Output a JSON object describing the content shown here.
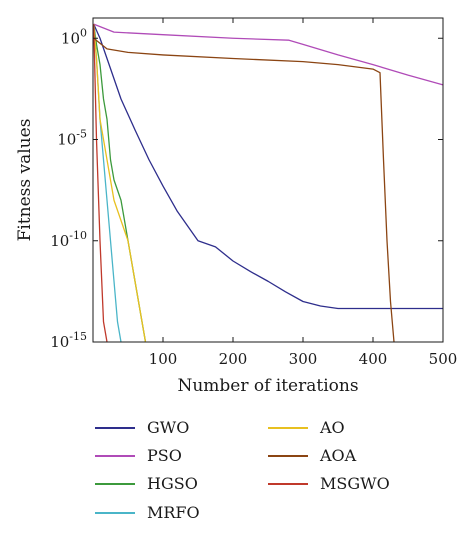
{
  "chart_data": {
    "type": "line",
    "xlabel": "Number of iterations",
    "ylabel": "Fitness values",
    "xlim": [
      0,
      500
    ],
    "ylim": [
      1e-15,
      10
    ],
    "yscale": "log",
    "grid": false,
    "legend_placement": "bottom",
    "x_ticks": [
      {
        "value": 100,
        "label": "100"
      },
      {
        "value": 200,
        "label": "200"
      },
      {
        "value": 300,
        "label": "300"
      },
      {
        "value": 400,
        "label": "400"
      },
      {
        "value": 500,
        "label": "500"
      }
    ],
    "y_ticks": [
      {
        "value": 1,
        "base": "10",
        "exp": "0"
      },
      {
        "value": 1e-05,
        "base": "10",
        "exp": "-5"
      },
      {
        "value": 1e-10,
        "base": "10",
        "exp": "-10"
      },
      {
        "value": 1e-15,
        "base": "10",
        "exp": "-15"
      }
    ],
    "series": [
      {
        "name": "GWO",
        "color": "#2e2e8c",
        "points": [
          [
            1,
            5
          ],
          [
            10,
            1
          ],
          [
            20,
            0.1
          ],
          [
            40,
            0.001
          ],
          [
            60,
            3e-05
          ],
          [
            80,
            1e-06
          ],
          [
            100,
            5e-08
          ],
          [
            120,
            3e-09
          ],
          [
            150,
            1e-10
          ],
          [
            175,
            5e-11
          ],
          [
            200,
            1e-11
          ],
          [
            225,
            3e-12
          ],
          [
            250,
            1e-12
          ],
          [
            275,
            3e-13
          ],
          [
            300,
            1e-13
          ],
          [
            325,
            6e-14
          ],
          [
            350,
            4.5e-14
          ],
          [
            400,
            4.5e-14
          ],
          [
            500,
            4.5e-14
          ]
        ]
      },
      {
        "name": "PSO",
        "color": "#b04bb8",
        "points": [
          [
            1,
            5
          ],
          [
            30,
            2
          ],
          [
            100,
            1.5
          ],
          [
            200,
            1
          ],
          [
            280,
            0.8
          ],
          [
            300,
            0.5
          ],
          [
            350,
            0.15
          ],
          [
            400,
            0.05
          ],
          [
            450,
            0.015
          ],
          [
            500,
            0.005
          ]
        ]
      },
      {
        "name": "HGSO",
        "color": "#3c9a3c",
        "points": [
          [
            1,
            5
          ],
          [
            5,
            0.5
          ],
          [
            10,
            0.05
          ],
          [
            15,
            0.001
          ],
          [
            20,
            0.0001
          ],
          [
            25,
            1e-06
          ],
          [
            30,
            1e-07
          ],
          [
            40,
            1e-08
          ],
          [
            50,
            1e-10
          ],
          [
            60,
            1e-12
          ],
          [
            70,
            1e-14
          ],
          [
            75,
            1e-15
          ]
        ]
      },
      {
        "name": "MRFO",
        "color": "#4ab5c8",
        "points": [
          [
            1,
            5
          ],
          [
            5,
            0.1
          ],
          [
            10,
            0.0001
          ],
          [
            15,
            1e-06
          ],
          [
            20,
            1e-08
          ],
          [
            25,
            1e-10
          ],
          [
            30,
            1e-12
          ],
          [
            35,
            1e-14
          ],
          [
            40,
            1e-15
          ]
        ]
      },
      {
        "name": "AO",
        "color": "#e8c020",
        "points": [
          [
            1,
            5
          ],
          [
            5,
            0.1
          ],
          [
            10,
            0.0001
          ],
          [
            20,
            1e-06
          ],
          [
            30,
            1e-08
          ],
          [
            40,
            1e-09
          ],
          [
            50,
            1e-10
          ],
          [
            60,
            1e-12
          ],
          [
            70,
            1e-14
          ],
          [
            75,
            1e-15
          ]
        ]
      },
      {
        "name": "AOA",
        "color": "#8b4513",
        "points": [
          [
            1,
            1
          ],
          [
            20,
            0.3
          ],
          [
            50,
            0.2
          ],
          [
            100,
            0.15
          ],
          [
            200,
            0.1
          ],
          [
            300,
            0.07
          ],
          [
            350,
            0.05
          ],
          [
            400,
            0.03
          ],
          [
            410,
            0.02
          ],
          [
            415,
            1e-06
          ],
          [
            420,
            1e-10
          ],
          [
            425,
            1e-13
          ],
          [
            430,
            1e-15
          ]
        ]
      },
      {
        "name": "MSGWO",
        "color": "#c0392b",
        "points": [
          [
            1,
            5
          ],
          [
            5,
            1e-05
          ],
          [
            10,
            1e-10
          ],
          [
            15,
            1e-14
          ],
          [
            20,
            1e-15
          ]
        ]
      }
    ]
  }
}
